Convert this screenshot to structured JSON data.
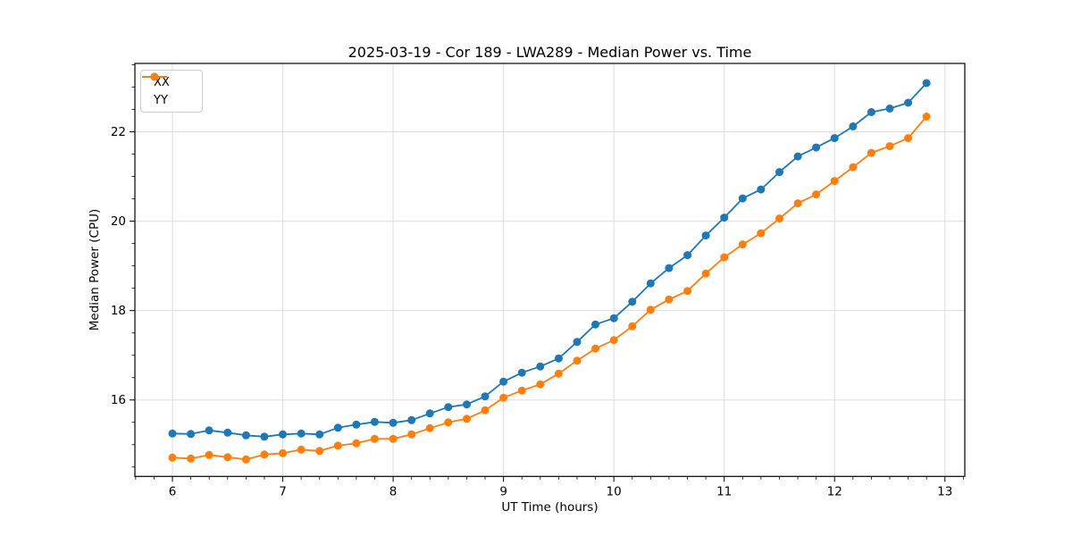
{
  "figure": {
    "title": "2025-03-19 - Cor 189 - LWA289 - Median Power vs. Time"
  },
  "chart_data": {
    "type": "line",
    "title": "2025-03-19 - Cor 189 - LWA289 - Median Power vs. Time",
    "xlabel": "UT Time (hours)",
    "ylabel": "Median Power (CPU)",
    "xlim": [
      5.66,
      13.18
    ],
    "ylim": [
      14.29,
      23.53
    ],
    "xticks": [
      6,
      7,
      8,
      9,
      10,
      11,
      12,
      13
    ],
    "yticks": [
      16,
      18,
      20,
      22
    ],
    "x_minor_step_hours": 0.1667,
    "y_minor_step": 0.5,
    "grid": true,
    "legend_position": "upper-left",
    "marker": "circle",
    "x": [
      6,
      6.167,
      6.333,
      6.5,
      6.667,
      6.833,
      7,
      7.167,
      7.333,
      7.5,
      7.667,
      7.833,
      8,
      8.167,
      8.333,
      8.5,
      8.667,
      8.833,
      9,
      9.167,
      9.333,
      9.5,
      9.667,
      9.833,
      10,
      10.167,
      10.333,
      10.5,
      10.667,
      10.833,
      11,
      11.167,
      11.333,
      11.5,
      11.667,
      11.833,
      12,
      12.167,
      12.333,
      12.5,
      12.667,
      12.833
    ],
    "series": [
      {
        "name": "XX",
        "color": "#1f77b4",
        "values": [
          15.25,
          15.24,
          15.32,
          15.27,
          15.21,
          15.18,
          15.23,
          15.25,
          15.23,
          15.38,
          15.45,
          15.51,
          15.49,
          15.55,
          15.7,
          15.84,
          15.9,
          16.08,
          16.41,
          16.61,
          16.75,
          16.93,
          17.3,
          17.69,
          17.83,
          18.2,
          18.61,
          18.95,
          19.24,
          19.68,
          20.08,
          20.51,
          20.71,
          21.1,
          21.45,
          21.65,
          21.86,
          22.12,
          22.44,
          22.52,
          22.65,
          23.09
        ]
      },
      {
        "name": "YY",
        "color": "#ff7f0e",
        "values": [
          14.71,
          14.69,
          14.77,
          14.72,
          14.67,
          14.78,
          14.81,
          14.89,
          14.86,
          14.98,
          15.03,
          15.13,
          15.13,
          15.23,
          15.37,
          15.5,
          15.58,
          15.77,
          16.05,
          16.21,
          16.35,
          16.59,
          16.88,
          17.15,
          17.34,
          17.65,
          18.02,
          18.25,
          18.44,
          18.83,
          19.19,
          19.48,
          19.73,
          20.06,
          20.4,
          20.6,
          20.9,
          21.21,
          21.53,
          21.68,
          21.86,
          22.34
        ]
      }
    ]
  },
  "colors": {
    "grid": "#dddddd",
    "spine": "#000000",
    "tick_text": "#000000",
    "background": "#ffffff",
    "legend_border": "#cccccc"
  }
}
